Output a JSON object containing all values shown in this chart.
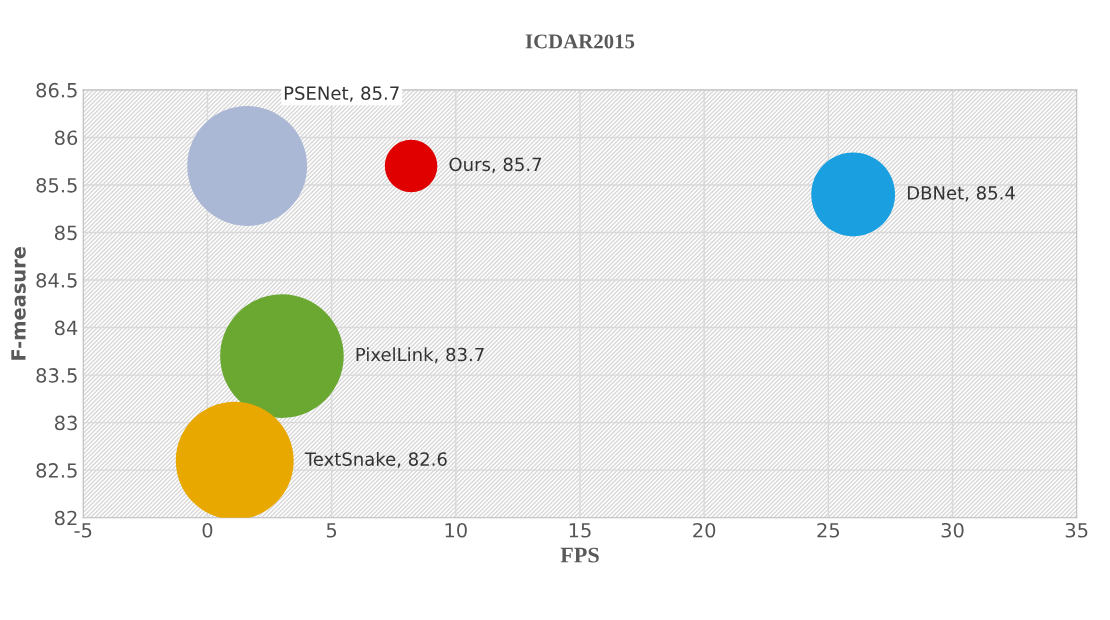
{
  "chart_data": {
    "type": "bubble",
    "title": "ICDAR2015",
    "xlabel": "FPS",
    "ylabel": "F-measure",
    "x": [
      1.6,
      8.2,
      26,
      3,
      1.1
    ],
    "values": [
      85.7,
      85.7,
      85.4,
      83.7,
      82.6
    ],
    "sizes": [
      0.94,
      0.18,
      0.46,
      1,
      0.91
    ],
    "colors": [
      "#aab8d6",
      "#e00000",
      "#1a9fe0",
      "#6aa832",
      "#e8a800"
    ],
    "value_labels": [
      "PSENet, 85.7",
      "Ours, 85.7",
      "DBNet, 85.4",
      "PixelLink, 83.7",
      "TextSnake, 82.6"
    ],
    "xlim": [
      -5,
      35
    ],
    "xticks": [
      -5,
      0,
      5,
      10,
      15,
      20,
      25,
      30,
      35
    ],
    "ylim": [
      82,
      86.5
    ],
    "yticks": [
      82,
      82.5,
      83,
      83.5,
      84,
      84.5,
      85,
      85.5,
      86,
      86.5
    ],
    "grid": true
  }
}
